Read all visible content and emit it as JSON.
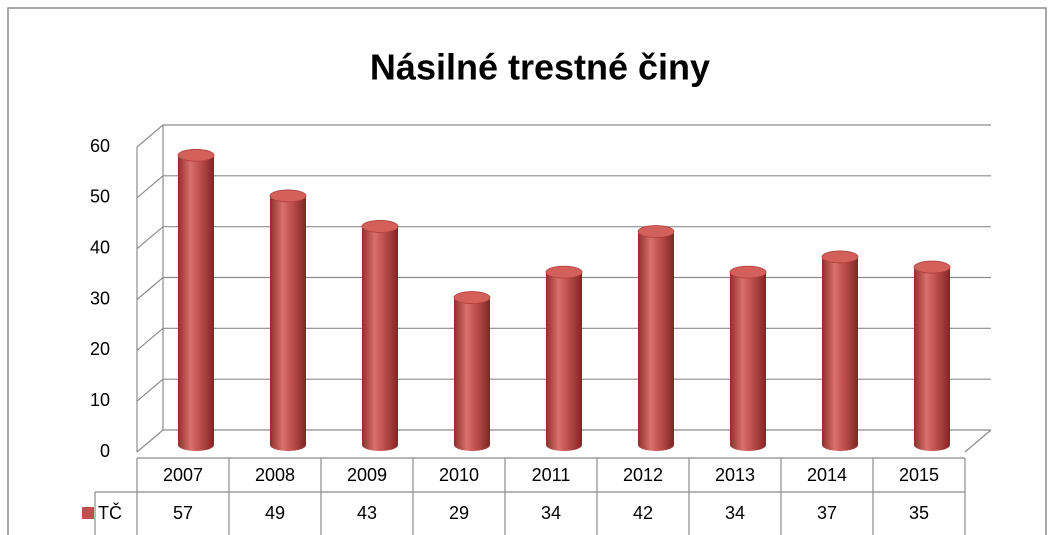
{
  "chart_data": {
    "type": "bar",
    "title": "Násilné trestné činy",
    "categories": [
      "2007",
      "2008",
      "2009",
      "2010",
      "2011",
      "2012",
      "2013",
      "2014",
      "2015"
    ],
    "series": [
      {
        "name": "TČ",
        "color": "#c0504d",
        "values": [
          57,
          49,
          43,
          29,
          34,
          42,
          34,
          37,
          35
        ]
      }
    ],
    "ylim": [
      0,
      60
    ],
    "yticks": [
      0,
      10,
      20,
      30,
      40,
      50,
      60
    ],
    "grid": true
  }
}
